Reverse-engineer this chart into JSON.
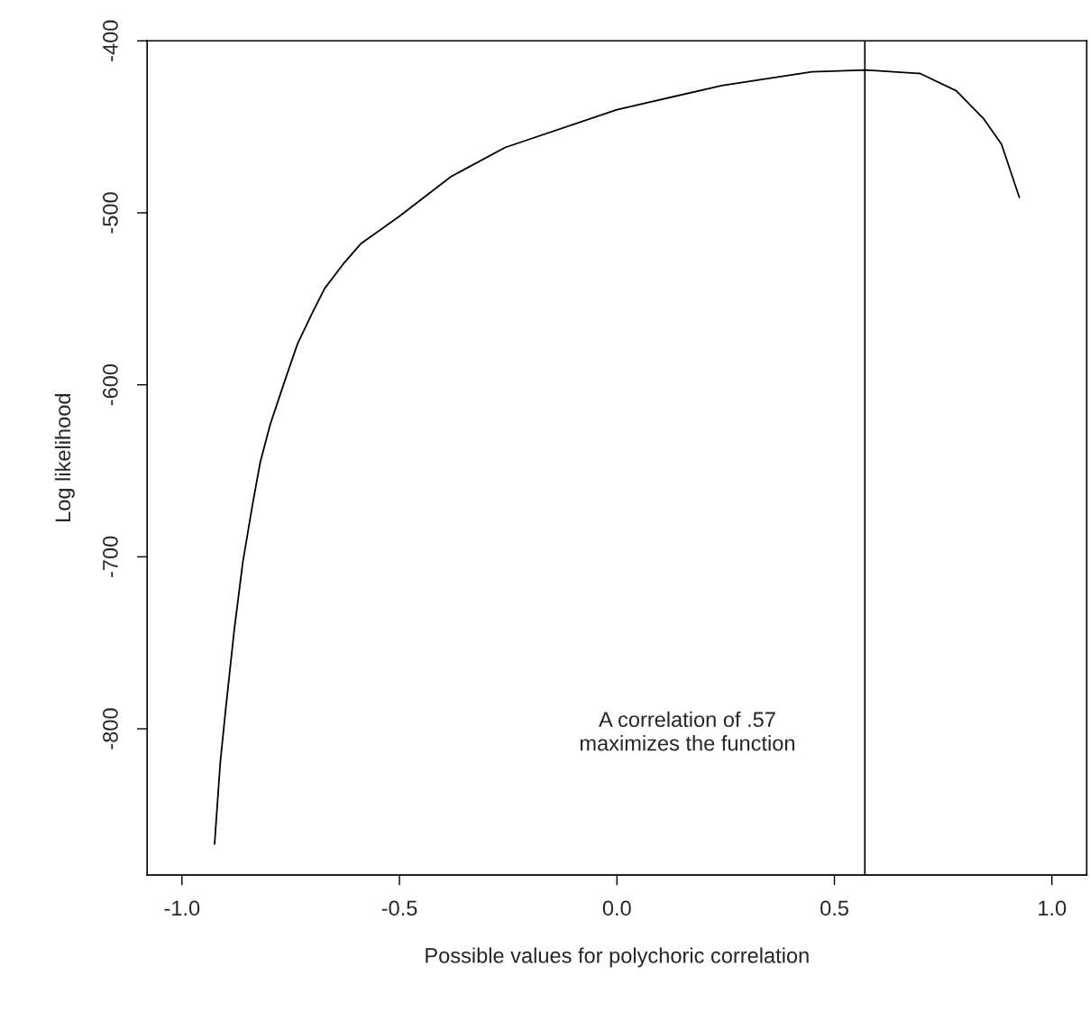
{
  "chart_data": {
    "type": "line",
    "xlabel": "Possible values for polychoric correlation",
    "ylabel": "Log likelihood",
    "x": [
      -0.925,
      -0.912,
      -0.9,
      -0.88,
      -0.86,
      -0.838,
      -0.82,
      -0.797,
      -0.76,
      -0.734,
      -0.7,
      -0.672,
      -0.63,
      -0.589,
      -0.5,
      -0.382,
      -0.257,
      0.0,
      0.241,
      0.448,
      0.573,
      0.697,
      0.78,
      0.842,
      0.884,
      0.925
    ],
    "series": [
      {
        "color": "#000000",
        "values": [
          -867,
          -820,
          -790,
          -743,
          -703,
          -670,
          -645,
          -623,
          -595,
          -576,
          -558,
          -544,
          -530,
          -518,
          -502,
          -479,
          -462,
          -440,
          -426,
          -418,
          -417,
          -419,
          -429,
          -445,
          -460,
          -491
        ]
      }
    ],
    "xlim": [
      -1.08,
      1.08
    ],
    "ylim": [
      -885,
      -400
    ],
    "xticks": [
      {
        "value": -1,
        "label": "-1.0"
      },
      {
        "value": -0.5,
        "label": "-0.5"
      },
      {
        "value": 0,
        "label": "0.0"
      },
      {
        "value": 0.5,
        "label": "0.5"
      },
      {
        "value": 1,
        "label": "1.0"
      }
    ],
    "yticks": [
      -400,
      -500,
      -600,
      -700,
      -800
    ],
    "ref_lines": [
      {
        "axis": "x",
        "value": 0.57,
        "color": "#000000"
      }
    ],
    "annotations": [
      "A correlation of .57\nmaximizes the function"
    ],
    "grid": false,
    "marker": "none",
    "line_style": "solid"
  }
}
